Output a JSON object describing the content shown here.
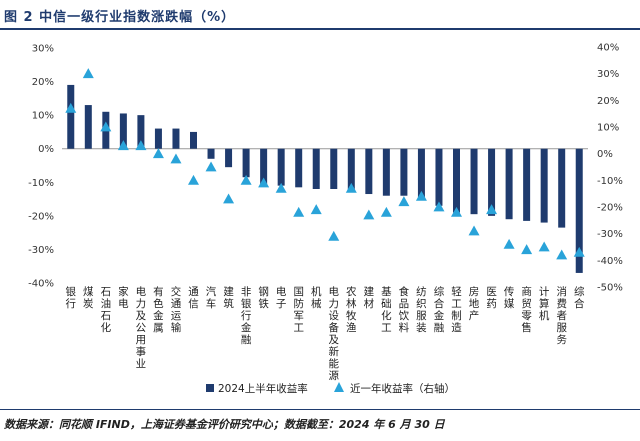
{
  "page": {
    "title": "图 2 中信一级行业指数涨跌幅（%）",
    "source": "数据来源：同花顺 IFIND，上海证券基金评价研究中心；数据截至：2024 年 6 月 30 日"
  },
  "colors": {
    "bar": "#1f3b6e",
    "triangle": "#29a3d9",
    "axis": "#999999"
  },
  "chart_data": {
    "type": "bar",
    "categories": [
      "银行",
      "煤炭",
      "石油石化",
      "家电",
      "电力及公用事业",
      "有色金属",
      "交通运输",
      "通信",
      "汽车",
      "建筑",
      "非银行金融",
      "钢铁",
      "电子",
      "国防军工",
      "机械",
      "电力设备及新能源",
      "农林牧渔",
      "建材",
      "基础化工",
      "食品饮料",
      "纺织服装",
      "综合金融",
      "轻工制造",
      "房地产",
      "医药",
      "传媒",
      "商贸零售",
      "计算机",
      "消费者服务",
      "综合"
    ],
    "series": [
      {
        "name": "2024上半年收益率",
        "kind": "bar",
        "axis": "left",
        "values": [
          19,
          13,
          11,
          10.5,
          10,
          6,
          6,
          5,
          -3,
          -5.5,
          -8.5,
          -10.5,
          -11,
          -11.5,
          -12,
          -12,
          -12.5,
          -13.5,
          -14,
          -14,
          -14.5,
          -17,
          -19,
          -19.5,
          -20,
          -21,
          -21.5,
          -22,
          -23.5,
          -37
        ]
      },
      {
        "name": "近一年收益率（右轴）",
        "kind": "triangle",
        "axis": "right",
        "values": [
          17,
          30,
          10,
          3,
          3,
          0,
          -2,
          -10,
          -5,
          -17,
          -10,
          -11,
          -13,
          -22,
          -21,
          -31,
          -13,
          -23,
          -22,
          -18,
          -16,
          -20,
          -22,
          -29,
          -21,
          -34,
          -36,
          -35,
          -38,
          -37
        ]
      }
    ],
    "ylim_left": [
      -40,
      30
    ],
    "ylim_right": [
      -50,
      40
    ],
    "yticks_left": [
      "30%",
      "20%",
      "10%",
      "0%",
      "-10%",
      "-20%",
      "-30%",
      "-40%"
    ],
    "yticks_right": [
      "40%",
      "30%",
      "20%",
      "10%",
      "0%",
      "-10%",
      "-20%",
      "-30%",
      "-40%",
      "-50%"
    ],
    "legend": [
      "2024上半年收益率",
      "近一年收益率（右轴）"
    ],
    "legend_position": "bottom"
  }
}
